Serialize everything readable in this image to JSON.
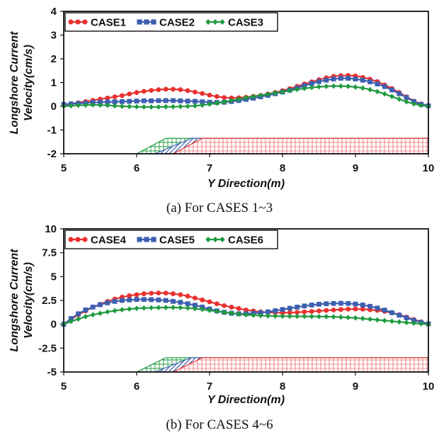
{
  "chart_data": [
    {
      "type": "line",
      "caption": "(a) For CASES 1~3",
      "xlabel": "Y Direction(m)",
      "ylabel_line1": "Longshore Current",
      "ylabel_line2": "Velocity(cm/s)",
      "xlim": [
        5,
        10
      ],
      "ylim": [
        -2,
        4
      ],
      "xticks": [
        5,
        6,
        7,
        8,
        9,
        10
      ],
      "xtick_labels": [
        "5",
        "6",
        "7",
        "8",
        "9",
        "10"
      ],
      "yticks": [
        -2,
        -1,
        0,
        1,
        2,
        3,
        4
      ],
      "ytick_labels": [
        "-2",
        "-1",
        "0",
        "1",
        "2",
        "3",
        "4"
      ],
      "x_step": 0.1,
      "series": [
        {
          "name": "CASE1",
          "color": "#e8312f",
          "marker": "circle",
          "values": [
            0.05,
            0.1,
            0.15,
            0.2,
            0.25,
            0.3,
            0.35,
            0.4,
            0.45,
            0.52,
            0.58,
            0.63,
            0.67,
            0.7,
            0.72,
            0.72,
            0.7,
            0.66,
            0.6,
            0.54,
            0.47,
            0.41,
            0.37,
            0.35,
            0.36,
            0.38,
            0.42,
            0.46,
            0.52,
            0.58,
            0.66,
            0.74,
            0.84,
            0.94,
            1.03,
            1.12,
            1.2,
            1.26,
            1.29,
            1.3,
            1.28,
            1.22,
            1.14,
            1.04,
            0.9,
            0.75,
            0.58,
            0.4,
            0.22,
            0.1,
            0.02
          ]
        },
        {
          "name": "CASE2",
          "color": "#3d5fb0",
          "marker": "square",
          "values": [
            0.08,
            0.1,
            0.12,
            0.14,
            0.16,
            0.17,
            0.18,
            0.19,
            0.2,
            0.21,
            0.22,
            0.23,
            0.23,
            0.24,
            0.24,
            0.24,
            0.23,
            0.22,
            0.21,
            0.19,
            0.17,
            0.16,
            0.17,
            0.2,
            0.24,
            0.29,
            0.34,
            0.4,
            0.46,
            0.53,
            0.6,
            0.68,
            0.77,
            0.87,
            0.96,
            1.04,
            1.1,
            1.15,
            1.18,
            1.18,
            1.15,
            1.1,
            1.03,
            0.94,
            0.83,
            0.69,
            0.53,
            0.37,
            0.2,
            0.08,
            0.02
          ]
        },
        {
          "name": "CASE3",
          "color": "#1f9a40",
          "marker": "diamond",
          "values": [
            0.0,
            0.02,
            0.04,
            0.05,
            0.06,
            0.05,
            0.04,
            0.02,
            0.0,
            -0.01,
            -0.02,
            -0.03,
            -0.03,
            -0.03,
            -0.02,
            -0.02,
            -0.01,
            0.0,
            0.02,
            0.05,
            0.09,
            0.13,
            0.18,
            0.24,
            0.3,
            0.36,
            0.41,
            0.46,
            0.51,
            0.56,
            0.61,
            0.66,
            0.71,
            0.75,
            0.79,
            0.82,
            0.84,
            0.85,
            0.85,
            0.84,
            0.81,
            0.77,
            0.7,
            0.62,
            0.52,
            0.41,
            0.3,
            0.19,
            0.1,
            0.04,
            0.0
          ]
        }
      ],
      "bathymetry_ymin": -2.0,
      "bathymetry_ymax": -1.35,
      "bathymetry": [
        {
          "name": "slope-3",
          "start_x": 6.0,
          "end_x": 6.4,
          "color": "#1f9a40"
        },
        {
          "name": "slope-2",
          "start_x": 6.25,
          "end_x": 6.75,
          "color": "#3d5fb0"
        },
        {
          "name": "slope-1",
          "start_x": 6.5,
          "end_x": 6.9,
          "color": "#e8312f"
        }
      ]
    },
    {
      "type": "line",
      "caption": "(b) For CASES 4~6",
      "xlabel": "Y Direction(m)",
      "ylabel_line1": "Longshore Current",
      "ylabel_line2": "Velocity(cm/s)",
      "xlim": [
        5,
        10
      ],
      "ylim": [
        -5,
        10
      ],
      "xticks": [
        5,
        6,
        7,
        8,
        9,
        10
      ],
      "xtick_labels": [
        "5",
        "6",
        "7",
        "8",
        "9",
        "10"
      ],
      "yticks": [
        -5,
        -2.5,
        0,
        2.5,
        5,
        7.5,
        10
      ],
      "ytick_labels": [
        "-5",
        "-2.5",
        "0",
        "2.5",
        "5",
        "7.5",
        "10"
      ],
      "x_step": 0.1,
      "series": [
        {
          "name": "CASE4",
          "color": "#e8312f",
          "marker": "circle",
          "values": [
            0.0,
            0.5,
            1.0,
            1.4,
            1.8,
            2.1,
            2.4,
            2.65,
            2.85,
            3.0,
            3.1,
            3.2,
            3.25,
            3.28,
            3.27,
            3.2,
            3.1,
            2.95,
            2.75,
            2.55,
            2.35,
            2.15,
            1.95,
            1.8,
            1.65,
            1.5,
            1.4,
            1.3,
            1.25,
            1.22,
            1.2,
            1.22,
            1.25,
            1.3,
            1.35,
            1.4,
            1.45,
            1.5,
            1.55,
            1.58,
            1.6,
            1.58,
            1.53,
            1.45,
            1.35,
            1.2,
            1.0,
            0.75,
            0.5,
            0.25,
            0.05
          ]
        },
        {
          "name": "CASE5",
          "color": "#3d5fb0",
          "marker": "square",
          "values": [
            0.0,
            0.6,
            1.1,
            1.5,
            1.8,
            2.05,
            2.25,
            2.4,
            2.5,
            2.55,
            2.6,
            2.6,
            2.58,
            2.55,
            2.5,
            2.4,
            2.3,
            2.15,
            2.0,
            1.8,
            1.6,
            1.4,
            1.25,
            1.15,
            1.1,
            1.1,
            1.15,
            1.2,
            1.3,
            1.42,
            1.55,
            1.68,
            1.8,
            1.92,
            2.02,
            2.1,
            2.15,
            2.18,
            2.2,
            2.18,
            2.12,
            2.02,
            1.88,
            1.7,
            1.48,
            1.22,
            0.95,
            0.68,
            0.42,
            0.2,
            0.05
          ]
        },
        {
          "name": "CASE6",
          "color": "#1f9a40",
          "marker": "diamond",
          "values": [
            0.0,
            0.3,
            0.55,
            0.8,
            1.0,
            1.15,
            1.3,
            1.42,
            1.52,
            1.6,
            1.66,
            1.7,
            1.73,
            1.75,
            1.76,
            1.76,
            1.74,
            1.7,
            1.64,
            1.56,
            1.46,
            1.36,
            1.26,
            1.16,
            1.07,
            1.0,
            0.95,
            0.91,
            0.88,
            0.86,
            0.85,
            0.84,
            0.83,
            0.83,
            0.82,
            0.81,
            0.8,
            0.78,
            0.75,
            0.71,
            0.66,
            0.6,
            0.53,
            0.46,
            0.39,
            0.32,
            0.25,
            0.18,
            0.11,
            0.05,
            0.0
          ]
        }
      ],
      "bathymetry_ymin": -5.0,
      "bathymetry_ymax": -3.5,
      "bathymetry": [
        {
          "name": "slope-6",
          "start_x": 6.0,
          "end_x": 6.4,
          "color": "#1f9a40"
        },
        {
          "name": "slope-5",
          "start_x": 6.25,
          "end_x": 6.75,
          "color": "#3d5fb0"
        },
        {
          "name": "slope-4",
          "start_x": 6.5,
          "end_x": 6.9,
          "color": "#e8312f"
        }
      ]
    }
  ]
}
